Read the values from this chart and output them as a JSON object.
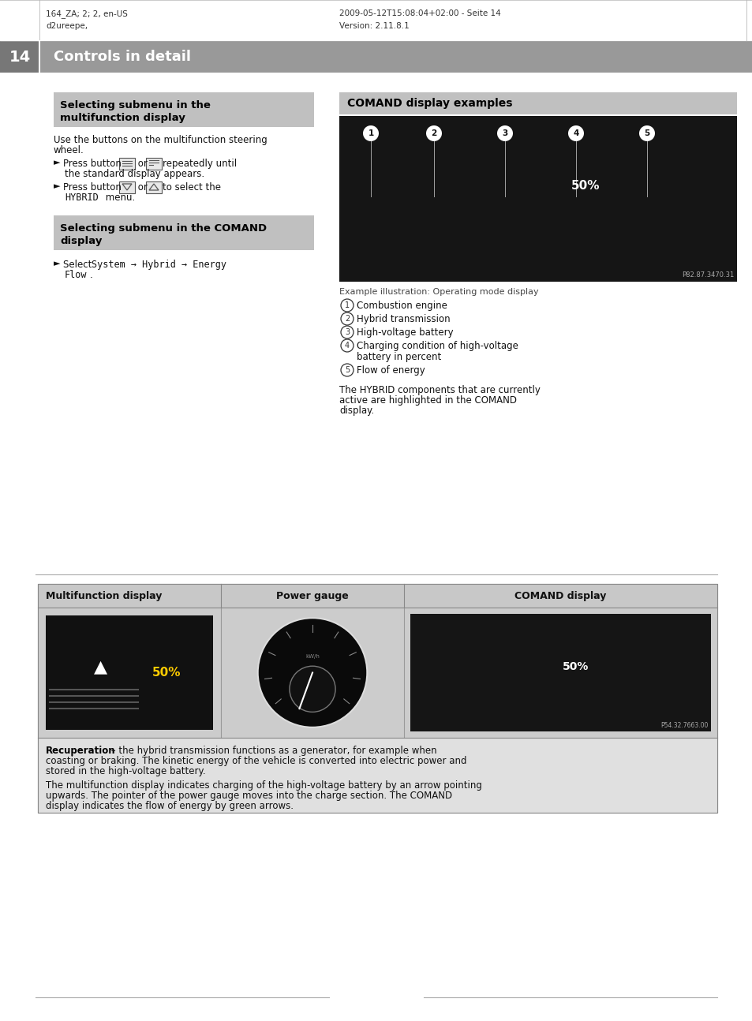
{
  "page_bg": "#ffffff",
  "header_bg": "#999999",
  "header_text_color": "#ffffff",
  "header_left_line1": "164_ZA; 2; 2, en-US",
  "header_left_line2": "d2ureepe,",
  "header_right_line1": "2009-05-12T15:08:04+02:00 - Seite 14",
  "header_right_line2": "Version: 2.11.8.1",
  "page_number": "14",
  "section_title": "Controls in detail",
  "box1_title_l1": "Selecting submenu in the",
  "box1_title_l2": "multifunction display",
  "box1_bg": "#c0c0c0",
  "box2_title_l1": "Selecting submenu in the COMAND",
  "box2_title_l2": "display",
  "box2_bg": "#c0c0c0",
  "right_box_title": "COMAND display examples",
  "right_box_bg": "#c0c0c0",
  "right_caption": "Example illustration: Operating mode display",
  "numbered_items": [
    "Combustion engine",
    "Hybrid transmission",
    "High-voltage battery",
    "Charging condition of high-voltage\nbattery in percent",
    "Flow of energy"
  ],
  "hybrid_text_l1": "The HYBRID components that are currently",
  "hybrid_text_l2": "active are highlighted in the COMAND",
  "hybrid_text_l3": "display.",
  "bottom_table_header_bg": "#c8c8c8",
  "bottom_table_img_bg": "#cccccc",
  "bottom_table_text_bg": "#e0e0e0",
  "bottom_table_headers": [
    "Multifunction display",
    "Power gauge",
    "COMAND display"
  ],
  "recuperation_bold": "Recuperation",
  "recuperation_rest1": " – the hybrid transmission functions as a generator, for example when",
  "recuperation_rest2": "coasting or braking. The kinetic energy of the vehicle is converted into electric power and",
  "recuperation_rest3": "stored in the high-voltage battery.",
  "recuperation_p2l1": "The multifunction display indicates charging of the high-voltage battery by an arrow pointing",
  "recuperation_p2l2": "upwards. The pointer of the power gauge moves into the charge section. The COMAND",
  "recuperation_p2l3": "display indicates the flow of energy by green arrows.",
  "divider_color": "#aaaaaa",
  "text_color": "#111111",
  "img_ref1": "P82.87.3470.31",
  "img_ref2": "P54.32.7663.00"
}
